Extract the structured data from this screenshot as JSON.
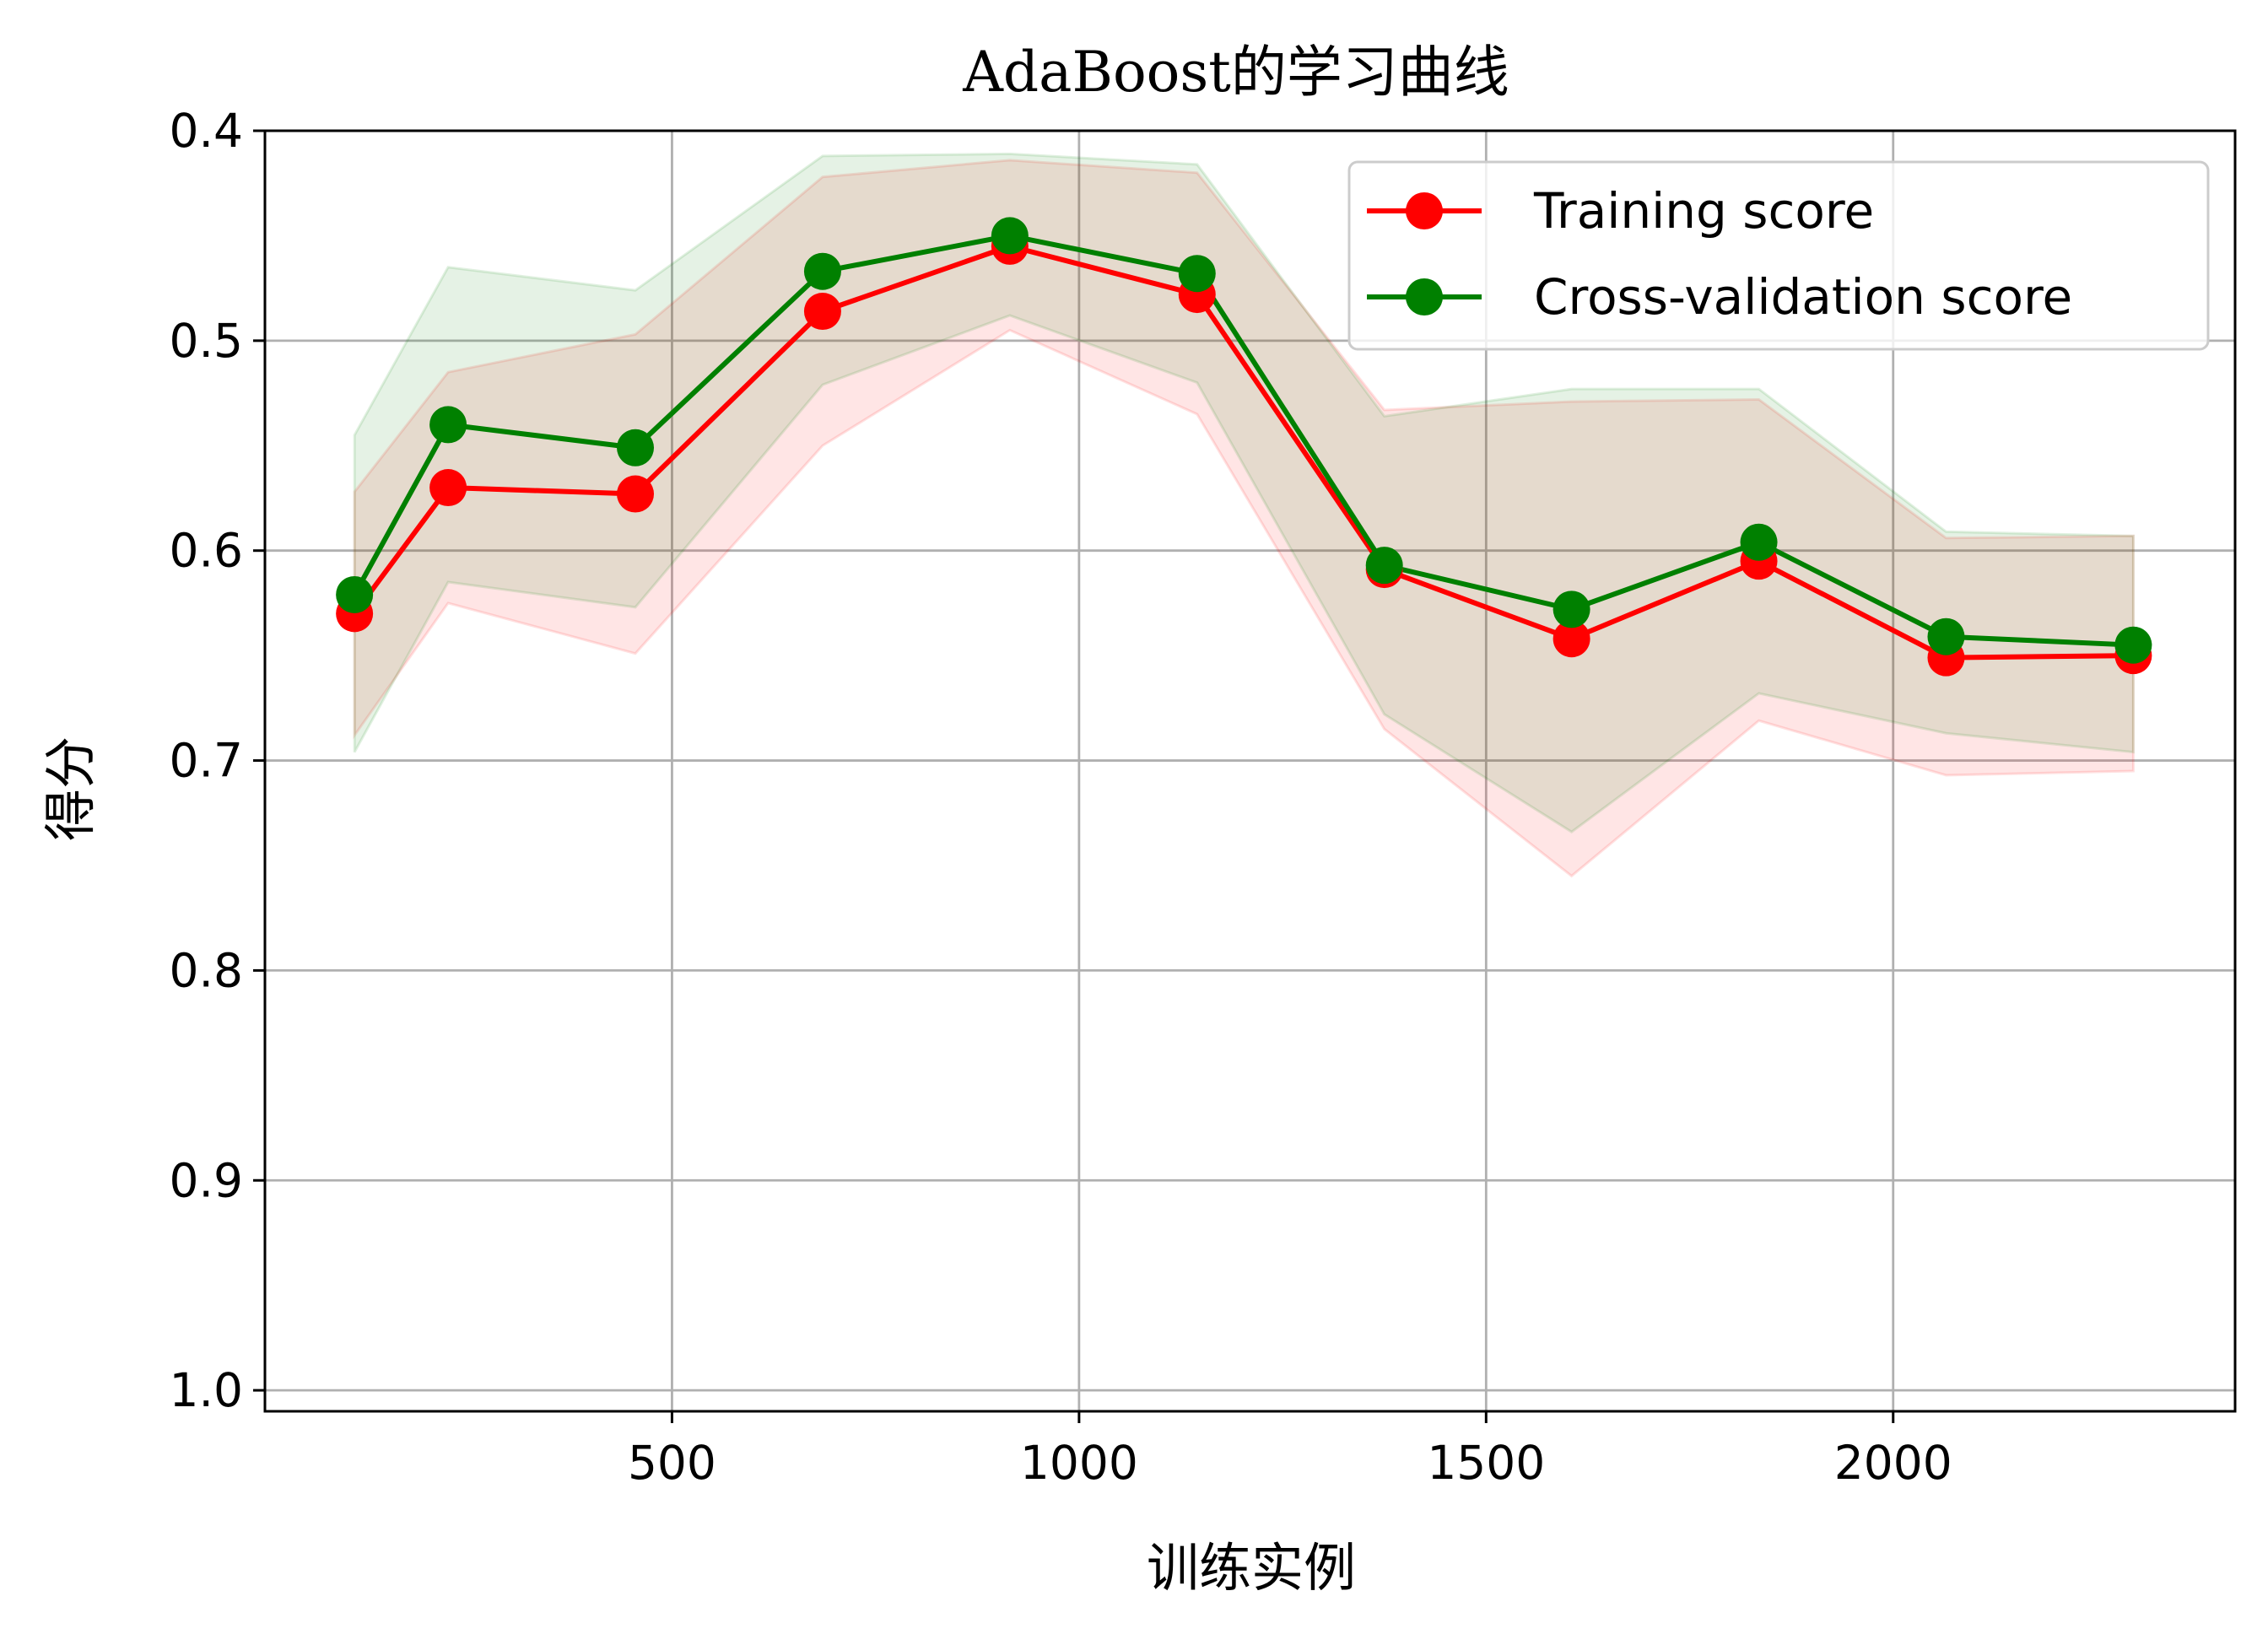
{
  "chart_data": {
    "type": "line",
    "title": "AdaBoost的学习曲线",
    "xlabel": "训练实例",
    "ylabel": "得分",
    "xlim": [
      0,
      2420
    ],
    "ylim": [
      1.01,
      0.4
    ],
    "y_inverted": true,
    "grid": true,
    "legend_placement": "top-right",
    "x_ticks": [
      500,
      1000,
      1500,
      2000
    ],
    "y_ticks": [
      0.4,
      0.5,
      0.6,
      0.7,
      0.8,
      0.9,
      1.0
    ],
    "x_tick_labels": [
      "500",
      "1000",
      "1500",
      "2000"
    ],
    "y_tick_labels": [
      "0.4",
      "0.5",
      "0.6",
      "0.7",
      "0.8",
      "0.9",
      "1.0"
    ],
    "x": [
      110,
      225,
      455,
      685,
      915,
      1145,
      1375,
      1605,
      1835,
      2065,
      2295
    ],
    "series": [
      {
        "name": "Training score",
        "color": "#ff0000",
        "values": [
          0.63,
          0.57,
          0.573,
          0.486,
          0.455,
          0.478,
          0.609,
          0.642,
          0.605,
          0.651,
          0.65
        ],
        "band_upper": [
          0.572,
          0.515,
          0.497,
          0.422,
          0.414,
          0.42,
          0.533,
          0.529,
          0.528,
          0.594,
          0.593
        ],
        "band_lower": [
          0.688,
          0.625,
          0.649,
          0.55,
          0.495,
          0.535,
          0.685,
          0.755,
          0.681,
          0.707,
          0.705
        ],
        "band_color": "#ff0000"
      },
      {
        "name": "Cross-validation score",
        "color": "#008000",
        "values": [
          0.621,
          0.54,
          0.551,
          0.467,
          0.45,
          0.468,
          0.607,
          0.628,
          0.596,
          0.641,
          0.645
        ],
        "band_upper": [
          0.545,
          0.465,
          0.476,
          0.412,
          0.411,
          0.416,
          0.536,
          0.523,
          0.523,
          0.591,
          0.593
        ],
        "band_lower": [
          0.696,
          0.615,
          0.627,
          0.521,
          0.488,
          0.52,
          0.678,
          0.734,
          0.668,
          0.687,
          0.696
        ],
        "band_color": "#008000"
      }
    ]
  }
}
